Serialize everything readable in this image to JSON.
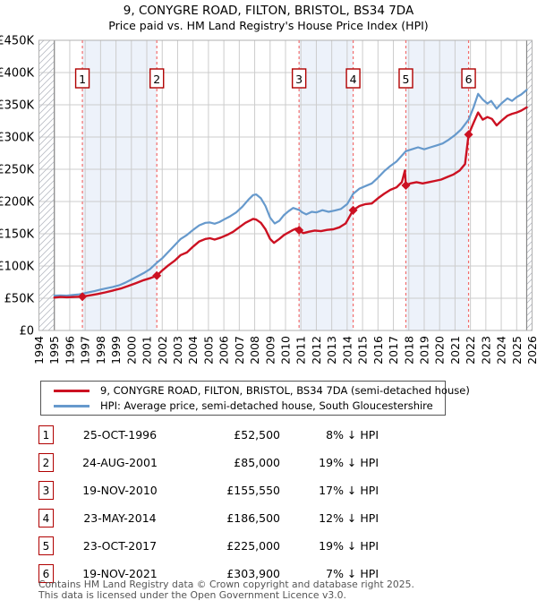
{
  "header": {
    "title": "9, CONYGRE ROAD, FILTON, BRISTOL, BS34 7DA",
    "subtitle": "Price paid vs. HM Land Registry's House Price Index (HPI)"
  },
  "chart_data": {
    "type": "line",
    "title": "9, CONYGRE ROAD, FILTON, BRISTOL, BS34 7DA — Price paid vs. HPI",
    "x_axis": {
      "min": 1994,
      "max": 2026,
      "ticks": [
        1994,
        1995,
        1996,
        1997,
        1998,
        1999,
        2000,
        2001,
        2002,
        2003,
        2004,
        2005,
        2006,
        2007,
        2008,
        2009,
        2010,
        2011,
        2012,
        2013,
        2014,
        2015,
        2016,
        2017,
        2018,
        2019,
        2020,
        2021,
        2022,
        2023,
        2024,
        2025,
        2026
      ]
    },
    "y_axis": {
      "min": 0,
      "max": 450000,
      "tick_step": 50000,
      "tick_labels": [
        "£0",
        "£50K",
        "£100K",
        "£150K",
        "£200K",
        "£250K",
        "£300K",
        "£350K",
        "£400K",
        "£450K"
      ]
    },
    "grid": true,
    "colors": {
      "price_line": "#cc1122",
      "hpi_line": "#6699cc",
      "event_line": "#f26d6d",
      "band_fill": "#edf2fa",
      "grid_line": "#cccccc",
      "badge_border": "#b00000",
      "hatch": "#b8bcc4"
    },
    "hatch_regions": [
      [
        1994,
        1995
      ],
      [
        2025.65,
        2026
      ]
    ],
    "shaded_bands": [
      [
        1996.82,
        2001.65
      ],
      [
        2010.88,
        2014.39
      ],
      [
        2017.81,
        2021.88
      ]
    ],
    "series": [
      {
        "name": "9, CONYGRE ROAD, FILTON, BRISTOL, BS34 7DA (semi-detached house)",
        "color": "#cc1122",
        "points": [
          [
            1995.0,
            51000
          ],
          [
            1995.4,
            52000
          ],
          [
            1995.8,
            51500
          ],
          [
            1996.3,
            52000
          ],
          [
            1996.82,
            52500
          ],
          [
            1997.3,
            54500
          ],
          [
            1997.8,
            56500
          ],
          [
            1998.3,
            59000
          ],
          [
            1998.8,
            62000
          ],
          [
            1999.3,
            65000
          ],
          [
            1999.8,
            69000
          ],
          [
            2000.3,
            73500
          ],
          [
            2000.8,
            78000
          ],
          [
            2001.2,
            81000
          ],
          [
            2001.65,
            85000
          ],
          [
            2002.0,
            93000
          ],
          [
            2002.4,
            101000
          ],
          [
            2002.8,
            108000
          ],
          [
            2003.2,
            117000
          ],
          [
            2003.6,
            121000
          ],
          [
            2004.0,
            130000
          ],
          [
            2004.4,
            138000
          ],
          [
            2004.8,
            142000
          ],
          [
            2005.1,
            143000
          ],
          [
            2005.4,
            141000
          ],
          [
            2005.8,
            144000
          ],
          [
            2006.2,
            148000
          ],
          [
            2006.6,
            153000
          ],
          [
            2007.0,
            160000
          ],
          [
            2007.4,
            167000
          ],
          [
            2007.9,
            173000
          ],
          [
            2008.1,
            172000
          ],
          [
            2008.4,
            167000
          ],
          [
            2008.7,
            157000
          ],
          [
            2009.0,
            142000
          ],
          [
            2009.25,
            136000
          ],
          [
            2009.6,
            142000
          ],
          [
            2009.9,
            148000
          ],
          [
            2010.2,
            152000
          ],
          [
            2010.5,
            156000
          ],
          [
            2010.7,
            158000
          ],
          [
            2010.88,
            155550
          ],
          [
            2011.15,
            151000
          ],
          [
            2011.5,
            153000
          ],
          [
            2011.9,
            155000
          ],
          [
            2012.3,
            154000
          ],
          [
            2012.7,
            156000
          ],
          [
            2013.1,
            157000
          ],
          [
            2013.5,
            160000
          ],
          [
            2013.9,
            166000
          ],
          [
            2014.39,
            186500
          ],
          [
            2014.8,
            193000
          ],
          [
            2015.2,
            196000
          ],
          [
            2015.6,
            197000
          ],
          [
            2016.0,
            205000
          ],
          [
            2016.4,
            212000
          ],
          [
            2016.8,
            218000
          ],
          [
            2017.2,
            222000
          ],
          [
            2017.55,
            230000
          ],
          [
            2017.75,
            248000
          ],
          [
            2017.81,
            225000
          ],
          [
            2018.1,
            228000
          ],
          [
            2018.5,
            230000
          ],
          [
            2018.9,
            228000
          ],
          [
            2019.3,
            230000
          ],
          [
            2019.7,
            232000
          ],
          [
            2020.1,
            234000
          ],
          [
            2020.5,
            238000
          ],
          [
            2020.9,
            242000
          ],
          [
            2021.3,
            248000
          ],
          [
            2021.65,
            258000
          ],
          [
            2021.88,
            303900
          ],
          [
            2022.2,
            322000
          ],
          [
            2022.5,
            338000
          ],
          [
            2022.8,
            327000
          ],
          [
            2023.1,
            331000
          ],
          [
            2023.4,
            328000
          ],
          [
            2023.7,
            318000
          ],
          [
            2024.0,
            325000
          ],
          [
            2024.4,
            333000
          ],
          [
            2024.7,
            336000
          ],
          [
            2025.0,
            338000
          ],
          [
            2025.3,
            341000
          ],
          [
            2025.65,
            346000
          ]
        ]
      },
      {
        "name": "HPI: Average price, semi-detached house, South Gloucestershire",
        "color": "#6699cc",
        "points": [
          [
            1995.0,
            54000
          ],
          [
            1995.4,
            54500
          ],
          [
            1995.8,
            54000
          ],
          [
            1996.2,
            55000
          ],
          [
            1996.6,
            56000
          ],
          [
            1996.82,
            57000
          ],
          [
            1997.2,
            59000
          ],
          [
            1997.6,
            61000
          ],
          [
            1998.0,
            63500
          ],
          [
            1998.4,
            65500
          ],
          [
            1998.8,
            67500
          ],
          [
            1999.2,
            70000
          ],
          [
            1999.6,
            74000
          ],
          [
            2000.0,
            79000
          ],
          [
            2000.4,
            84000
          ],
          [
            2000.8,
            89000
          ],
          [
            2001.2,
            95000
          ],
          [
            2001.65,
            105000
          ],
          [
            2002.0,
            112000
          ],
          [
            2002.4,
            122000
          ],
          [
            2002.8,
            132000
          ],
          [
            2003.2,
            142000
          ],
          [
            2003.6,
            148000
          ],
          [
            2004.0,
            156000
          ],
          [
            2004.4,
            163000
          ],
          [
            2004.8,
            167000
          ],
          [
            2005.1,
            167500
          ],
          [
            2005.4,
            165500
          ],
          [
            2005.7,
            168000
          ],
          [
            2006.0,
            172000
          ],
          [
            2006.4,
            177000
          ],
          [
            2006.8,
            183000
          ],
          [
            2007.2,
            192000
          ],
          [
            2007.6,
            203000
          ],
          [
            2007.9,
            210000
          ],
          [
            2008.1,
            211000
          ],
          [
            2008.4,
            205000
          ],
          [
            2008.7,
            193000
          ],
          [
            2009.0,
            175000
          ],
          [
            2009.3,
            166000
          ],
          [
            2009.6,
            170000
          ],
          [
            2009.9,
            179000
          ],
          [
            2010.2,
            185000
          ],
          [
            2010.5,
            190000
          ],
          [
            2010.88,
            187000
          ],
          [
            2011.1,
            183000
          ],
          [
            2011.35,
            180000
          ],
          [
            2011.7,
            184000
          ],
          [
            2012.0,
            183000
          ],
          [
            2012.4,
            186500
          ],
          [
            2012.8,
            184000
          ],
          [
            2013.2,
            186000
          ],
          [
            2013.6,
            188500
          ],
          [
            2014.0,
            196000
          ],
          [
            2014.39,
            212000
          ],
          [
            2014.8,
            220000
          ],
          [
            2015.2,
            224000
          ],
          [
            2015.6,
            228000
          ],
          [
            2016.0,
            237000
          ],
          [
            2016.4,
            247000
          ],
          [
            2016.8,
            255000
          ],
          [
            2017.2,
            262000
          ],
          [
            2017.81,
            278000
          ],
          [
            2018.2,
            281000
          ],
          [
            2018.6,
            284000
          ],
          [
            2019.0,
            281000
          ],
          [
            2019.4,
            284000
          ],
          [
            2019.8,
            287000
          ],
          [
            2020.2,
            290000
          ],
          [
            2020.6,
            296000
          ],
          [
            2021.0,
            303000
          ],
          [
            2021.4,
            312000
          ],
          [
            2021.88,
            327000
          ],
          [
            2022.2,
            346000
          ],
          [
            2022.5,
            367000
          ],
          [
            2022.8,
            358000
          ],
          [
            2023.1,
            352000
          ],
          [
            2023.35,
            356000
          ],
          [
            2023.7,
            344000
          ],
          [
            2024.0,
            352000
          ],
          [
            2024.4,
            360000
          ],
          [
            2024.7,
            356000
          ],
          [
            2025.0,
            362000
          ],
          [
            2025.3,
            366000
          ],
          [
            2025.65,
            373000
          ]
        ]
      }
    ],
    "sale_markers": [
      {
        "label": "1",
        "year": 1996.82,
        "value": 52500
      },
      {
        "label": "2",
        "year": 2001.65,
        "value": 85000
      },
      {
        "label": "3",
        "year": 2010.88,
        "value": 155550
      },
      {
        "label": "4",
        "year": 2014.39,
        "value": 186500
      },
      {
        "label": "5",
        "year": 2017.81,
        "value": 225000
      },
      {
        "label": "6",
        "year": 2021.88,
        "value": 303900
      }
    ],
    "legend_position": "below"
  },
  "legend": {
    "items": [
      {
        "label": "9, CONYGRE ROAD, FILTON, BRISTOL, BS34 7DA (semi-detached house)",
        "color": "#cc1122"
      },
      {
        "label": "HPI: Average price, semi-detached house, South Gloucestershire",
        "color": "#6699cc"
      }
    ]
  },
  "sales_table": {
    "rows": [
      {
        "num": "1",
        "date": "25-OCT-1996",
        "price": "£52,500",
        "hpi_diff": "8% ↓ HPI"
      },
      {
        "num": "2",
        "date": "24-AUG-2001",
        "price": "£85,000",
        "hpi_diff": "19% ↓ HPI"
      },
      {
        "num": "3",
        "date": "19-NOV-2010",
        "price": "£155,550",
        "hpi_diff": "17% ↓ HPI"
      },
      {
        "num": "4",
        "date": "23-MAY-2014",
        "price": "£186,500",
        "hpi_diff": "12% ↓ HPI"
      },
      {
        "num": "5",
        "date": "23-OCT-2017",
        "price": "£225,000",
        "hpi_diff": "19% ↓ HPI"
      },
      {
        "num": "6",
        "date": "19-NOV-2021",
        "price": "£303,900",
        "hpi_diff": "7% ↓ HPI"
      }
    ]
  },
  "footer": {
    "line1": "Contains HM Land Registry data © Crown copyright and database right 2025.",
    "line2": "This data is licensed under the Open Government Licence v3.0."
  }
}
